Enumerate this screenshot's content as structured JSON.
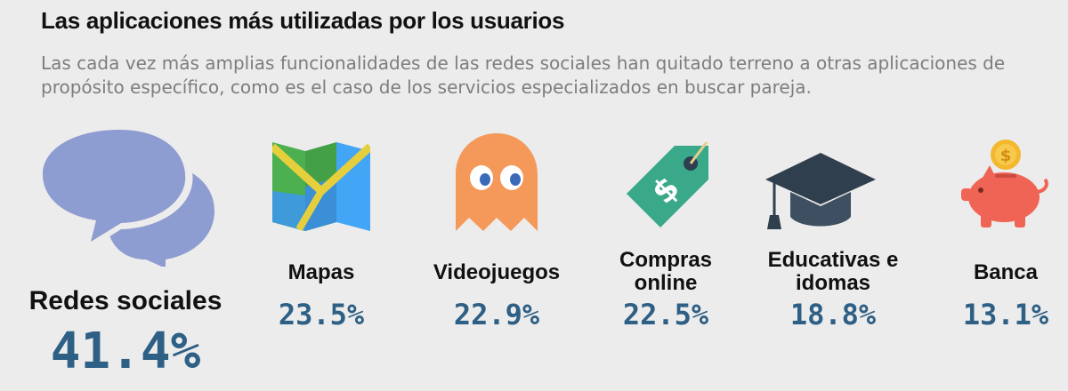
{
  "header": {
    "title": "Las aplicaciones más utilizadas por los usuarios",
    "subtitle": "Las cada vez más amplias funcionalidades de las redes sociales han quitado terreno a otras aplicaciones de propósito específico, como es el caso de los servicios especializados en buscar pareja."
  },
  "chart_data": {
    "type": "table",
    "title": "Las aplicaciones más utilizadas por los usuarios",
    "categories": [
      "Redes sociales",
      "Mapas",
      "Videojuegos",
      "Compras online",
      "Educativas e idomas",
      "Banca"
    ],
    "values": [
      41.4,
      23.5,
      22.9,
      22.5,
      18.8,
      13.1
    ],
    "items": [
      {
        "label": "Redes sociales",
        "value": "41.4%",
        "icon": "chat-bubbles-icon"
      },
      {
        "label": "Mapas",
        "value": "23.5%",
        "icon": "map-icon"
      },
      {
        "label": "Videojuegos",
        "value": "22.9%",
        "icon": "ghost-icon"
      },
      {
        "label": "Compras online",
        "value": "22.5%",
        "icon": "price-tag-icon"
      },
      {
        "label": "Educativas e idomas",
        "value": "18.8%",
        "icon": "graduation-cap-icon"
      },
      {
        "label": "Banca",
        "value": "13.1%",
        "icon": "piggy-bank-icon"
      }
    ]
  },
  "colors": {
    "value_text": "#2e5f85",
    "background": "#ececec"
  }
}
